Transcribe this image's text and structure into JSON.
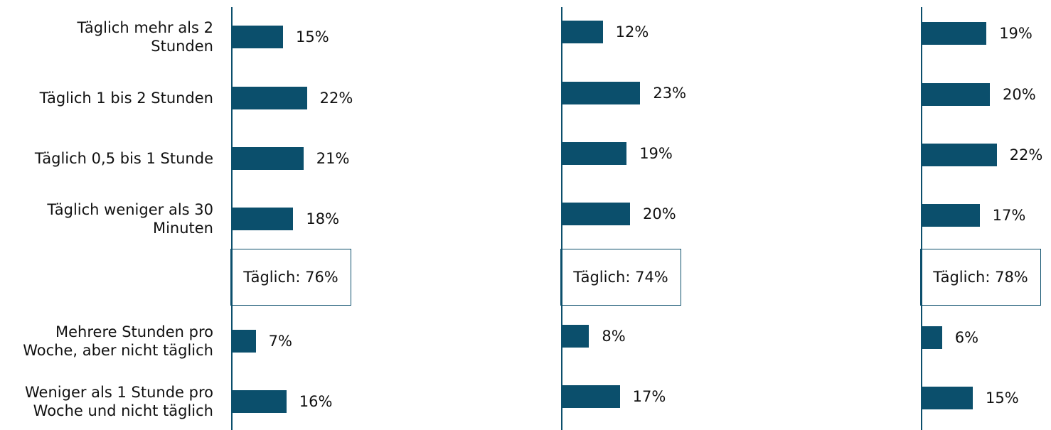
{
  "chart_data": {
    "type": "bar",
    "categories": [
      "Täglich mehr als 2\nStunden",
      "Täglich 1 bis 2 Stunden",
      "Täglich 0,5 bis 1 Stunde",
      "Täglich weniger als 30\nMinuten",
      "Mehrere Stunden pro\nWoche, aber nicht täglich",
      "Weniger als 1 Stunde pro\nWoche und nicht täglich"
    ],
    "xlim": [
      0,
      100
    ],
    "series": [
      {
        "color": "#0b4f6c",
        "values": [
          15,
          22,
          21,
          18,
          7,
          16
        ],
        "value_labels": [
          "15%",
          "22%",
          "21%",
          "18%",
          "7%",
          "16%"
        ],
        "annotation": "Täglich: 76%"
      },
      {
        "color": "#0b4f6c",
        "values": [
          12,
          23,
          19,
          20,
          8,
          17
        ],
        "value_labels": [
          "12%",
          "23%",
          "19%",
          "20%",
          "8%",
          "17%"
        ],
        "annotation": "Täglich: 74%"
      },
      {
        "color": "#0b4f6c",
        "values": [
          19,
          20,
          22,
          17,
          6,
          15
        ],
        "value_labels": [
          "19%",
          "20%",
          "22%",
          "17%",
          "6%",
          "15%"
        ],
        "annotation": "Täglich: 78%"
      }
    ]
  }
}
